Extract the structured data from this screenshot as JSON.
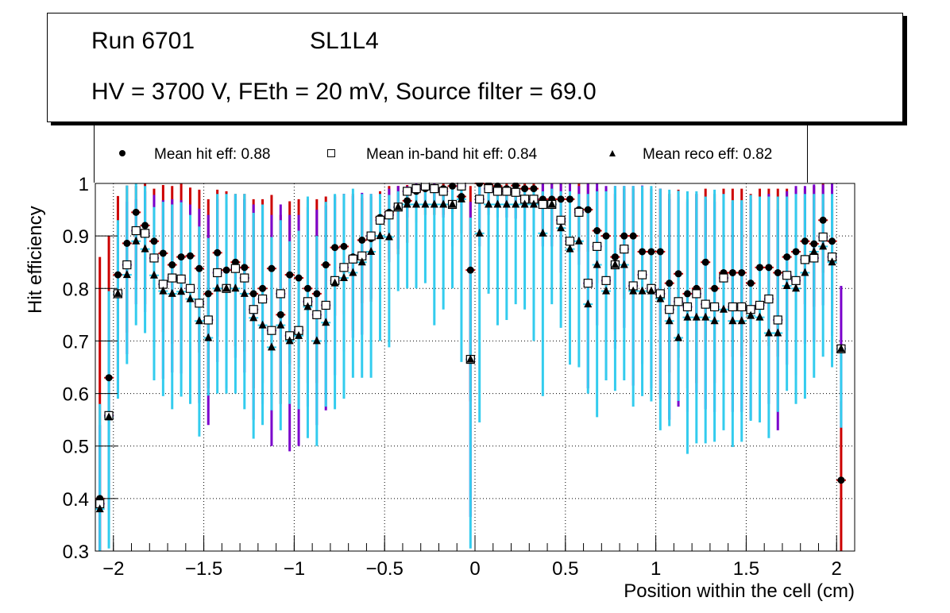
{
  "title": {
    "run": "Run 6701",
    "layer": "SL1L4",
    "conditions": "HV = 3700 V, FEth = 20 mV, Source filter = 69.0"
  },
  "legend": [
    {
      "marker": "filled-circle",
      "label": "Mean hit  eff: 0.88"
    },
    {
      "marker": "open-square",
      "label": "Mean in-band hit eff: 0.84"
    },
    {
      "marker": "filled-triangle",
      "label": "Mean reco eff: 0.82"
    }
  ],
  "chart_data": {
    "type": "scatter",
    "xlabel": "Position within the cell (cm)",
    "ylabel": "Hit efficiency",
    "xlim": [
      -2.1,
      2.1
    ],
    "ylim": [
      0.3,
      1.0
    ],
    "xticks": [
      -2,
      -1.5,
      -1,
      -0.5,
      0,
      0.5,
      1,
      1.5,
      2
    ],
    "xtick_labels": [
      "−2",
      "−1.5",
      "−1",
      "−0.5",
      "0",
      "0.5",
      "1",
      "1.5",
      "2"
    ],
    "yticks": [
      0.3,
      0.4,
      0.5,
      0.6,
      0.7,
      0.8,
      0.9,
      1.0
    ],
    "ytick_labels": [
      "0.3",
      "0.4",
      "0.5",
      "0.6",
      "0.7",
      "0.8",
      "0.9",
      "1"
    ],
    "grid": true,
    "legend_position": "top",
    "x": [
      -2.075,
      -2.025,
      -1.975,
      -1.925,
      -1.875,
      -1.825,
      -1.775,
      -1.725,
      -1.675,
      -1.625,
      -1.575,
      -1.525,
      -1.475,
      -1.425,
      -1.375,
      -1.325,
      -1.275,
      -1.225,
      -1.175,
      -1.125,
      -1.075,
      -1.025,
      -0.975,
      -0.925,
      -0.875,
      -0.825,
      -0.775,
      -0.725,
      -0.675,
      -0.625,
      -0.575,
      -0.525,
      -0.475,
      -0.425,
      -0.375,
      -0.325,
      -0.275,
      -0.225,
      -0.175,
      -0.125,
      -0.075,
      -0.025,
      0.025,
      0.075,
      0.125,
      0.175,
      0.225,
      0.275,
      0.325,
      0.375,
      0.425,
      0.475,
      0.525,
      0.575,
      0.625,
      0.675,
      0.725,
      0.775,
      0.825,
      0.875,
      0.925,
      0.975,
      1.025,
      1.075,
      1.125,
      1.175,
      1.225,
      1.275,
      1.325,
      1.375,
      1.425,
      1.475,
      1.525,
      1.575,
      1.625,
      1.675,
      1.725,
      1.775,
      1.825,
      1.875,
      1.925,
      1.975,
      2.025
    ],
    "series": [
      {
        "name": "Mean hit  eff: 0.88",
        "marker": "filled-circle",
        "error_color": "#cc0000",
        "values": [
          0.4,
          0.63,
          0.826,
          0.886,
          0.945,
          0.92,
          0.89,
          0.867,
          0.845,
          0.86,
          0.862,
          0.838,
          0.79,
          0.868,
          0.835,
          0.85,
          0.84,
          0.79,
          0.8,
          0.838,
          0.75,
          0.826,
          0.82,
          0.8,
          0.79,
          0.845,
          0.878,
          0.88,
          0.86,
          0.892,
          0.895,
          0.935,
          0.945,
          0.955,
          0.967,
          0.985,
          0.99,
          0.99,
          0.99,
          0.995,
          0.975,
          0.835,
          1.0,
          0.998,
          0.995,
          0.99,
          0.996,
          0.99,
          0.99,
          0.97,
          0.97,
          0.97,
          0.97,
          0.95,
          0.95,
          0.91,
          0.9,
          0.86,
          0.9,
          0.9,
          0.87,
          0.87,
          0.87,
          0.81,
          0.828,
          0.79,
          0.8,
          0.85,
          0.8,
          0.83,
          0.83,
          0.83,
          0.81,
          0.84,
          0.84,
          0.83,
          0.86,
          0.87,
          0.89,
          0.885,
          0.93,
          0.89,
          0.435
        ],
        "err_low": [
          0.12,
          0.08,
          0.18,
          0.17,
          0.13,
          0.15,
          0.15,
          0.15,
          0.15,
          0.16,
          0.16,
          0.16,
          0.18,
          0.16,
          0.16,
          0.16,
          0.16,
          0.18,
          0.18,
          0.16,
          0.17,
          0.17,
          0.17,
          0.18,
          0.17,
          0.15,
          0.13,
          0.13,
          0.14,
          0.12,
          0.12,
          0.1,
          0.09,
          0.09,
          0.08,
          0.06,
          0.05,
          0.05,
          0.05,
          0.05,
          0.07,
          0.25,
          0.02,
          0.03,
          0.03,
          0.04,
          0.03,
          0.04,
          0.04,
          0.06,
          0.06,
          0.06,
          0.06,
          0.08,
          0.08,
          0.1,
          0.12,
          0.14,
          0.12,
          0.12,
          0.13,
          0.13,
          0.14,
          0.17,
          0.16,
          0.18,
          0.18,
          0.15,
          0.18,
          0.16,
          0.16,
          0.16,
          0.17,
          0.15,
          0.15,
          0.16,
          0.14,
          0.13,
          0.12,
          0.12,
          0.1,
          0.13,
          0.14
        ],
        "err_high": [
          0.46,
          0.27,
          0.15,
          0.11,
          0.05,
          0.08,
          0.1,
          0.13,
          0.15,
          0.14,
          0.13,
          0.15,
          0.18,
          0.12,
          0.15,
          0.13,
          0.14,
          0.18,
          0.17,
          0.14,
          0.19,
          0.14,
          0.15,
          0.17,
          0.18,
          0.13,
          0.1,
          0.1,
          0.12,
          0.08,
          0.08,
          0.05,
          0.05,
          0.04,
          0.03,
          0.01,
          0.01,
          0.01,
          0.01,
          0.005,
          0.02,
          0.16,
          0.0,
          0.002,
          0.005,
          0.01,
          0.004,
          0.01,
          0.01,
          0.03,
          0.03,
          0.03,
          0.03,
          0.05,
          0.05,
          0.08,
          0.09,
          0.12,
          0.09,
          0.09,
          0.12,
          0.12,
          0.12,
          0.17,
          0.16,
          0.18,
          0.18,
          0.14,
          0.18,
          0.16,
          0.16,
          0.16,
          0.17,
          0.15,
          0.15,
          0.16,
          0.13,
          0.12,
          0.1,
          0.11,
          0.07,
          0.06,
          0.15
        ]
      },
      {
        "name": "Mean in-band hit eff: 0.84",
        "marker": "open-square",
        "error_color": "#7a00cc",
        "values": [
          0.39,
          0.558,
          0.79,
          0.845,
          0.91,
          0.905,
          0.858,
          0.808,
          0.82,
          0.818,
          0.8,
          0.772,
          0.74,
          0.83,
          0.8,
          0.838,
          0.82,
          0.76,
          0.78,
          0.72,
          0.79,
          0.71,
          0.72,
          0.775,
          0.75,
          0.768,
          0.815,
          0.84,
          0.856,
          0.862,
          0.9,
          0.93,
          0.94,
          0.955,
          0.985,
          0.99,
          0.995,
          0.99,
          0.985,
          0.96,
          0.995,
          0.665,
          0.97,
          0.99,
          0.985,
          0.985,
          0.983,
          0.97,
          0.97,
          0.96,
          0.96,
          0.93,
          0.89,
          0.945,
          0.81,
          0.88,
          0.815,
          0.845,
          0.875,
          0.805,
          0.826,
          0.8,
          0.79,
          0.76,
          0.775,
          0.765,
          0.79,
          0.77,
          0.765,
          0.82,
          0.765,
          0.765,
          0.76,
          0.768,
          0.78,
          0.74,
          0.825,
          0.815,
          0.855,
          0.858,
          0.898,
          0.86,
          0.685
        ],
        "err_low": [
          0.1,
          0.18,
          0.19,
          0.17,
          0.14,
          0.15,
          0.17,
          0.18,
          0.18,
          0.18,
          0.19,
          0.19,
          0.2,
          0.17,
          0.19,
          0.17,
          0.18,
          0.21,
          0.2,
          0.22,
          0.19,
          0.22,
          0.22,
          0.2,
          0.21,
          0.2,
          0.18,
          0.16,
          0.15,
          0.15,
          0.12,
          0.1,
          0.09,
          0.08,
          0.05,
          0.04,
          0.03,
          0.04,
          0.05,
          0.08,
          0.04,
          0.3,
          0.09,
          0.05,
          0.05,
          0.05,
          0.05,
          0.06,
          0.06,
          0.08,
          0.08,
          0.1,
          0.14,
          0.1,
          0.2,
          0.15,
          0.19,
          0.16,
          0.15,
          0.19,
          0.17,
          0.19,
          0.2,
          0.21,
          0.2,
          0.2,
          0.19,
          0.2,
          0.2,
          0.18,
          0.2,
          0.2,
          0.21,
          0.2,
          0.2,
          0.21,
          0.17,
          0.18,
          0.16,
          0.16,
          0.13,
          0.15,
          0.15
        ],
        "err_high": [
          0.15,
          0.2,
          0.13,
          0.12,
          0.06,
          0.08,
          0.12,
          0.16,
          0.15,
          0.15,
          0.16,
          0.18,
          0.2,
          0.14,
          0.16,
          0.14,
          0.15,
          0.2,
          0.18,
          0.22,
          0.17,
          0.23,
          0.22,
          0.18,
          0.2,
          0.19,
          0.16,
          0.14,
          0.12,
          0.12,
          0.08,
          0.05,
          0.05,
          0.04,
          0.01,
          0.01,
          0.005,
          0.01,
          0.01,
          0.03,
          0.005,
          0.3,
          0.03,
          0.01,
          0.01,
          0.01,
          0.01,
          0.02,
          0.02,
          0.04,
          0.04,
          0.07,
          0.11,
          0.05,
          0.19,
          0.12,
          0.18,
          0.15,
          0.12,
          0.19,
          0.17,
          0.19,
          0.2,
          0.21,
          0.2,
          0.2,
          0.19,
          0.2,
          0.2,
          0.16,
          0.2,
          0.2,
          0.21,
          0.2,
          0.2,
          0.21,
          0.16,
          0.18,
          0.14,
          0.14,
          0.1,
          0.14,
          0.12
        ]
      },
      {
        "name": "Mean reco eff: 0.82",
        "marker": "filled-triangle",
        "error_color": "#33ccee",
        "values": [
          0.38,
          0.555,
          0.79,
          0.826,
          0.89,
          0.875,
          0.825,
          0.795,
          0.79,
          0.794,
          0.78,
          0.738,
          0.706,
          0.8,
          0.8,
          0.8,
          0.79,
          0.744,
          0.73,
          0.688,
          0.73,
          0.7,
          0.71,
          0.765,
          0.7,
          0.735,
          0.81,
          0.82,
          0.83,
          0.85,
          0.87,
          0.9,
          0.898,
          0.955,
          0.96,
          0.96,
          0.96,
          0.96,
          0.96,
          0.96,
          0.97,
          0.665,
          0.905,
          0.96,
          0.96,
          0.96,
          0.96,
          0.96,
          0.96,
          0.905,
          0.96,
          0.915,
          0.875,
          0.89,
          0.77,
          0.845,
          0.795,
          0.845,
          0.845,
          0.795,
          0.795,
          0.795,
          0.78,
          0.738,
          0.706,
          0.745,
          0.745,
          0.745,
          0.738,
          0.76,
          0.738,
          0.738,
          0.748,
          0.745,
          0.715,
          0.715,
          0.805,
          0.8,
          0.83,
          0.87,
          0.88,
          0.85,
          0.685
        ],
        "err_low": [
          0.08,
          0.25,
          0.2,
          0.17,
          0.16,
          0.16,
          0.2,
          0.2,
          0.22,
          0.2,
          0.2,
          0.22,
          0.11,
          0.2,
          0.2,
          0.2,
          0.22,
          0.23,
          0.19,
          0.12,
          0.2,
          0.12,
          0.14,
          0.25,
          0.2,
          0.16,
          0.24,
          0.23,
          0.2,
          0.22,
          0.24,
          0.2,
          0.21,
          0.16,
          0.16,
          0.16,
          0.15,
          0.23,
          0.2,
          0.16,
          0.31,
          0.36,
          0.36,
          0.17,
          0.23,
          0.22,
          0.19,
          0.2,
          0.26,
          0.31,
          0.19,
          0.19,
          0.22,
          0.24,
          0.17,
          0.29,
          0.17,
          0.24,
          0.22,
          0.22,
          0.2,
          0.21,
          0.25,
          0.2,
          0.12,
          0.26,
          0.24,
          0.24,
          0.23,
          0.23,
          0.24,
          0.23,
          0.2,
          0.2,
          0.2,
          0.15,
          0.2,
          0.22,
          0.24,
          0.24,
          0.21,
          0.2,
          0.15
        ],
        "err_high": [
          0.2,
          0.24,
          0.14,
          0.17,
          0.11,
          0.12,
          0.13,
          0.17,
          0.17,
          0.17,
          0.16,
          0.18,
          0.19,
          0.18,
          0.18,
          0.18,
          0.19,
          0.2,
          0.23,
          0.21,
          0.2,
          0.19,
          0.2,
          0.21,
          0.2,
          0.23,
          0.17,
          0.16,
          0.16,
          0.13,
          0.11,
          0.08,
          0.08,
          0.03,
          0.03,
          0.03,
          0.03,
          0.03,
          0.03,
          0.03,
          0.025,
          0.27,
          0.09,
          0.03,
          0.03,
          0.03,
          0.03,
          0.03,
          0.03,
          0.08,
          0.03,
          0.07,
          0.11,
          0.09,
          0.21,
          0.14,
          0.19,
          0.15,
          0.15,
          0.2,
          0.2,
          0.2,
          0.21,
          0.25,
          0.28,
          0.24,
          0.24,
          0.23,
          0.25,
          0.22,
          0.23,
          0.23,
          0.23,
          0.23,
          0.26,
          0.26,
          0.17,
          0.18,
          0.15,
          0.11,
          0.1,
          0.13,
          0.0
        ]
      }
    ]
  }
}
